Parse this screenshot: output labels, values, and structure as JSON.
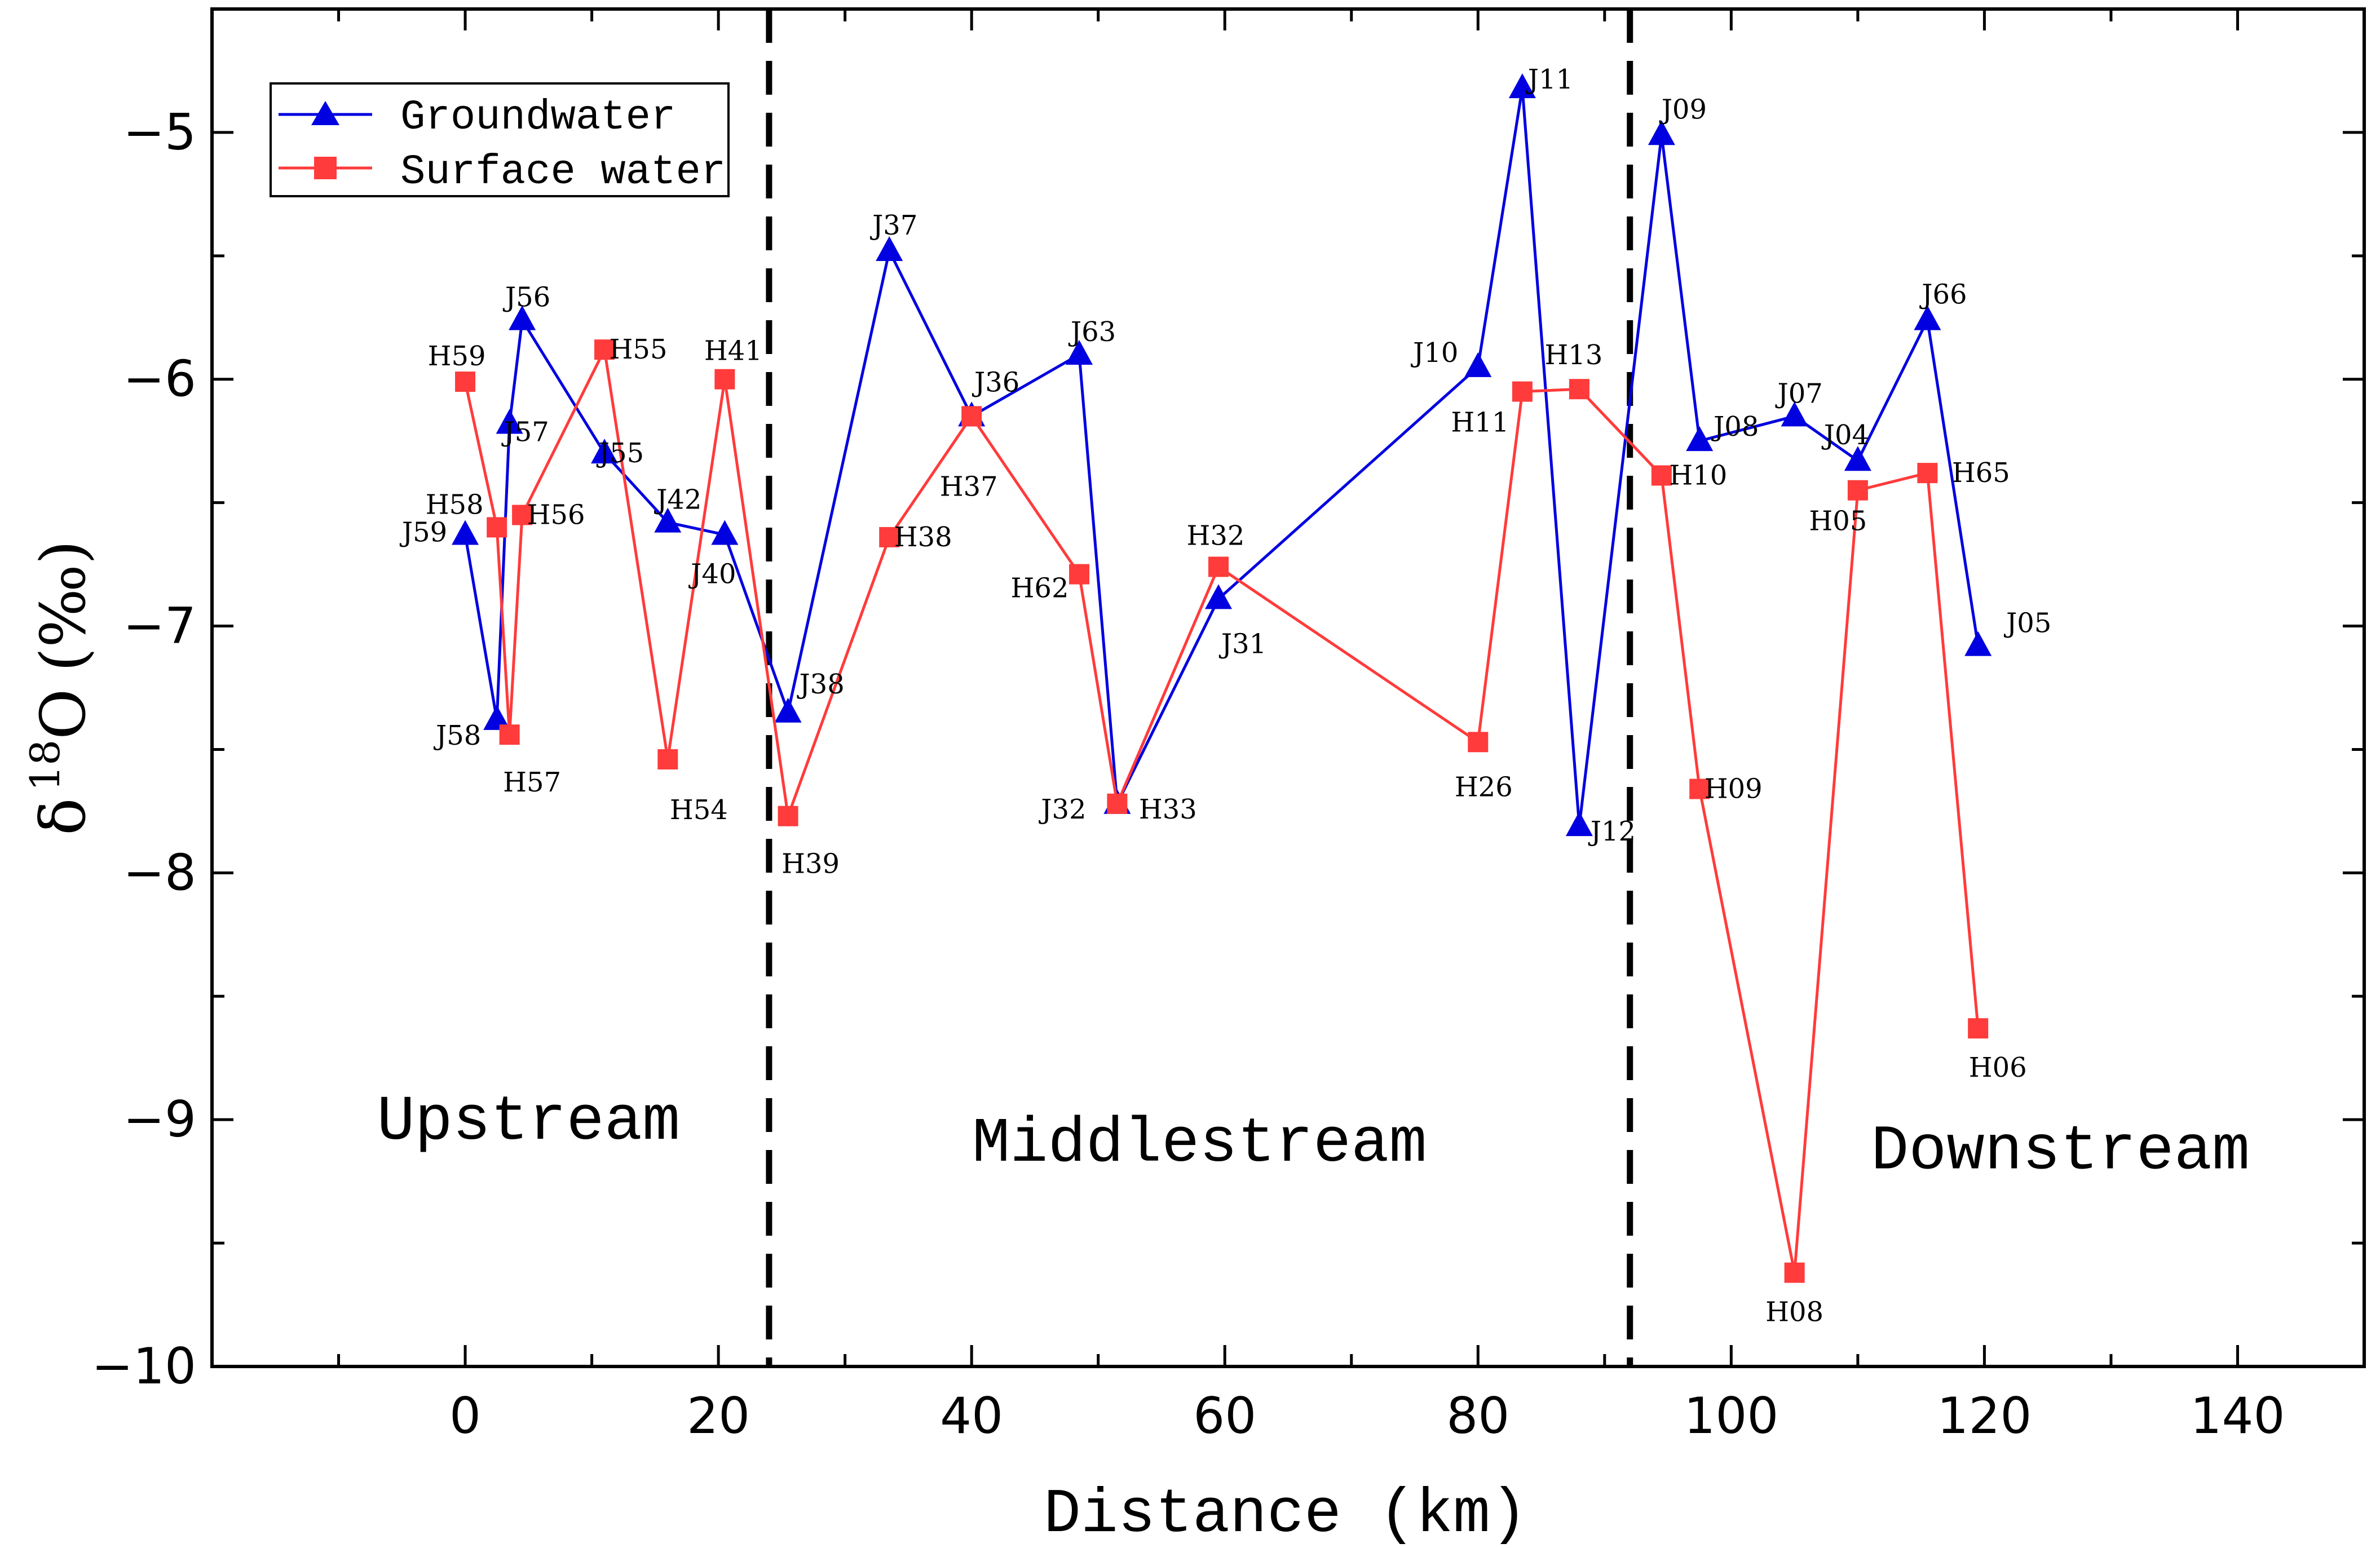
{
  "chart_data": {
    "type": "line",
    "xlabel": "Distance (km)",
    "ylabel": "δ ¹⁸O (‰)",
    "ylabel_parts": {
      "delta": "δ",
      "mass": "18",
      "element": "O",
      "unit": "(‰)"
    },
    "xlim": [
      -20,
      150
    ],
    "ylim": [
      -10,
      -4.5
    ],
    "x_ticks": [
      0,
      20,
      40,
      60,
      80,
      100,
      120,
      140
    ],
    "x_tick_labels": [
      "0",
      "20",
      "40",
      "60",
      "80",
      "100",
      "120",
      "140"
    ],
    "y_ticks": [
      -10,
      -9,
      -8,
      -7,
      -6,
      -5
    ],
    "y_tick_labels": [
      "−10",
      "−9",
      "−8",
      "−7",
      "−6",
      "−5"
    ],
    "legend_position": "top-left",
    "dividers": [
      24,
      92
    ],
    "regions": [
      {
        "label": "Upstream",
        "x": 5,
        "y": -8.99
      },
      {
        "label": "Middlestream",
        "x": 58,
        "y": -9.08
      },
      {
        "label": "Downstream",
        "x": 126,
        "y": -9.11
      }
    ],
    "series": [
      {
        "name": "Groundwater",
        "color": "#0000e0",
        "marker": "triangle",
        "points": [
          {
            "label": "J59",
            "x": 0,
            "y": -6.63,
            "dx": -72,
            "dy": -4
          },
          {
            "label": "J58",
            "x": 2.5,
            "y": -7.38,
            "dx": -68,
            "dy": 28
          },
          {
            "label": "J57",
            "x": 3.5,
            "y": -6.18,
            "dx": 30,
            "dy": 15
          },
          {
            "label": "J56",
            "x": 4.5,
            "y": -5.76,
            "dx": 10,
            "dy": -40
          },
          {
            "label": "J55",
            "x": 11,
            "y": -6.3,
            "dx": 30,
            "dy": 0
          },
          {
            "label": "J42",
            "x": 16,
            "y": -6.58,
            "dx": 20,
            "dy": -40
          },
          {
            "label": "J40",
            "x": 20.5,
            "y": -6.63,
            "dx": -20,
            "dy": 70
          },
          {
            "label": "J38",
            "x": 25.5,
            "y": -7.35,
            "dx": 60,
            "dy": -50
          },
          {
            "label": "J37",
            "x": 33.5,
            "y": -5.48,
            "dx": 10,
            "dy": -45
          },
          {
            "label": "J36",
            "x": 40,
            "y": -6.15,
            "dx": 45,
            "dy": -60
          },
          {
            "label": "J63",
            "x": 48.5,
            "y": -5.9,
            "dx": 25,
            "dy": -40
          },
          {
            "label": "J32",
            "x": 51.5,
            "y": -7.72,
            "dx": -95,
            "dy": 10
          },
          {
            "label": "J31",
            "x": 59.5,
            "y": -6.89,
            "dx": 45,
            "dy": 80
          },
          {
            "label": "J10",
            "x": 80,
            "y": -5.95,
            "dx": -75,
            "dy": -25
          },
          {
            "label": "J11",
            "x": 83.5,
            "y": -4.82,
            "dx": 50,
            "dy": -15
          },
          {
            "label": "J12",
            "x": 88,
            "y": -7.81,
            "dx": 60,
            "dy": 10
          },
          {
            "label": "J09",
            "x": 94.5,
            "y": -5.01,
            "dx": 40,
            "dy": -45
          },
          {
            "label": "J08",
            "x": 97.5,
            "y": -6.25,
            "dx": 65,
            "dy": -25
          },
          {
            "label": "J07",
            "x": 105,
            "y": -6.15,
            "dx": 10,
            "dy": -40
          },
          {
            "label": "J04",
            "x": 110,
            "y": -6.33,
            "dx": -20,
            "dy": -45
          },
          {
            "label": "J66",
            "x": 115.5,
            "y": -5.76,
            "dx": 30,
            "dy": -45
          },
          {
            "label": "J05",
            "x": 119.5,
            "y": -7.08,
            "dx": 90,
            "dy": -40
          }
        ]
      },
      {
        "name": "Surface water",
        "color": "#ff3b3b",
        "marker": "square",
        "points": [
          {
            "label": "H59",
            "x": 0,
            "y": -6.01,
            "dx": -15,
            "dy": -45
          },
          {
            "label": "H58",
            "x": 2.5,
            "y": -6.6,
            "dx": -75,
            "dy": -40
          },
          {
            "label": "H57",
            "x": 3.5,
            "y": -7.44,
            "dx": 40,
            "dy": 85
          },
          {
            "label": "H56",
            "x": 4.5,
            "y": -6.55,
            "dx": 60,
            "dy": 0
          },
          {
            "label": "H55",
            "x": 11,
            "y": -5.88,
            "dx": 60,
            "dy": 0
          },
          {
            "label": "H54",
            "x": 16,
            "y": -7.54,
            "dx": 55,
            "dy": 90
          },
          {
            "label": "H41",
            "x": 20.5,
            "y": -6.0,
            "dx": 15,
            "dy": -50
          },
          {
            "label": "H39",
            "x": 25.5,
            "y": -7.77,
            "dx": 40,
            "dy": 85
          },
          {
            "label": "H38",
            "x": 33.5,
            "y": -6.64,
            "dx": 60,
            "dy": 0
          },
          {
            "label": "H37",
            "x": 40,
            "y": -6.15,
            "dx": -5,
            "dy": 125
          },
          {
            "label": "H62",
            "x": 48.5,
            "y": -6.79,
            "dx": -70,
            "dy": 25
          },
          {
            "label": "H33",
            "x": 51.5,
            "y": -7.72,
            "dx": 90,
            "dy": 10
          },
          {
            "label": "H32",
            "x": 59.5,
            "y": -6.76,
            "dx": -5,
            "dy": -55
          },
          {
            "label": "H26",
            "x": 80,
            "y": -7.47,
            "dx": 10,
            "dy": 80
          },
          {
            "label": "H11",
            "x": 83.5,
            "y": -6.05,
            "dx": -75,
            "dy": 55
          },
          {
            "label": "H13",
            "x": 88,
            "y": -6.04,
            "dx": -10,
            "dy": -60
          },
          {
            "label": "H10",
            "x": 94.5,
            "y": -6.39,
            "dx": 65,
            "dy": 0
          },
          {
            "label": "H09",
            "x": 97.5,
            "y": -7.66,
            "dx": 60,
            "dy": 0
          },
          {
            "label": "H08",
            "x": 105,
            "y": -9.62,
            "dx": 0,
            "dy": 70
          },
          {
            "label": "H05",
            "x": 110,
            "y": -6.45,
            "dx": -35,
            "dy": 55
          },
          {
            "label": "H65",
            "x": 115.5,
            "y": -6.38,
            "dx": 95,
            "dy": 0
          },
          {
            "label": "H06",
            "x": 119.5,
            "y": -8.63,
            "dx": 35,
            "dy": 70
          }
        ]
      }
    ]
  }
}
